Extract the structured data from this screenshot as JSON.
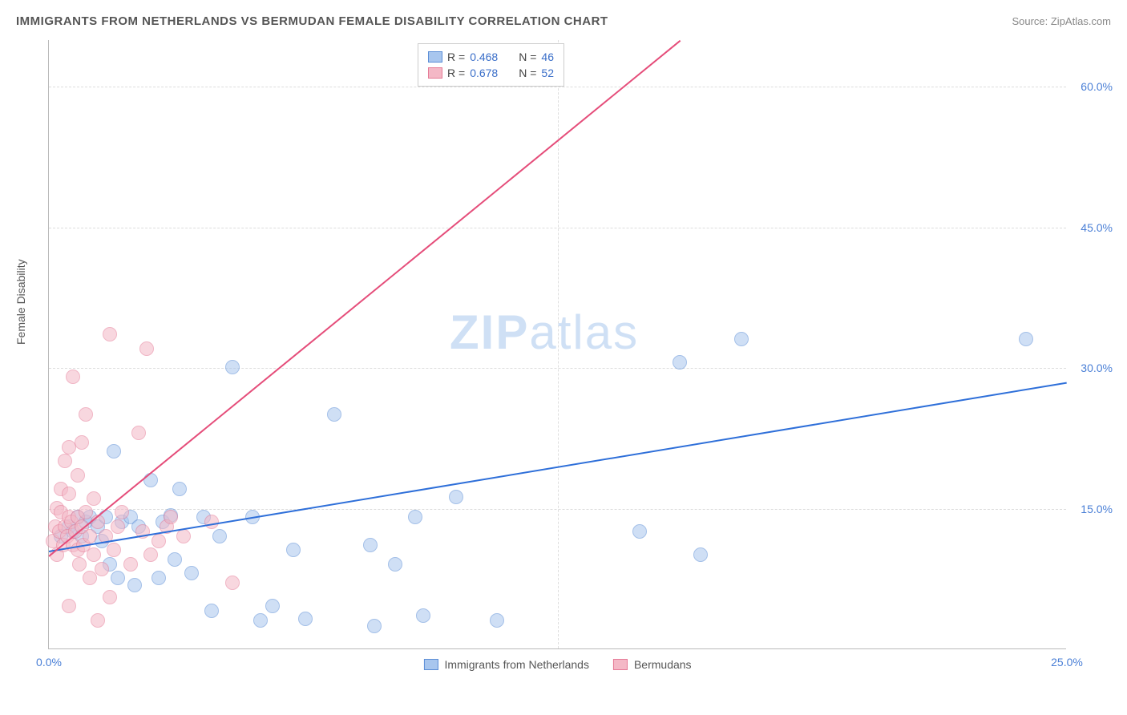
{
  "title": "IMMIGRANTS FROM NETHERLANDS VS BERMUDAN FEMALE DISABILITY CORRELATION CHART",
  "source": "Source: ZipAtlas.com",
  "ylabel": "Female Disability",
  "watermark_zip": "ZIP",
  "watermark_atlas": "atlas",
  "chart": {
    "type": "scatter",
    "xlim": [
      0,
      25
    ],
    "ylim": [
      0,
      65
    ],
    "xticks": [
      {
        "val": 0,
        "label": "0.0%"
      },
      {
        "val": 25,
        "label": "25.0%"
      }
    ],
    "yticks": [
      {
        "val": 15,
        "label": "15.0%"
      },
      {
        "val": 30,
        "label": "30.0%"
      },
      {
        "val": 45,
        "label": "45.0%"
      },
      {
        "val": 60,
        "label": "60.0%"
      }
    ],
    "vgrids": [
      12.5
    ],
    "background_color": "#ffffff",
    "grid_color": "#dddddd",
    "marker_radius": 9,
    "marker_opacity": 0.55,
    "series": [
      {
        "name": "Immigrants from Netherlands",
        "color_fill": "#a8c6ee",
        "color_stroke": "#5b8dd6",
        "line_color": "#2e6fd9",
        "R": "0.468",
        "N": "46",
        "trend": {
          "x1": 0,
          "y1": 10.5,
          "x2": 25,
          "y2": 28.5
        },
        "points": [
          [
            0.3,
            12.0
          ],
          [
            0.5,
            13.0
          ],
          [
            0.6,
            12.5
          ],
          [
            0.7,
            14.0
          ],
          [
            0.8,
            12.0
          ],
          [
            0.9,
            13.5
          ],
          [
            1.0,
            14.0
          ],
          [
            1.2,
            13.0
          ],
          [
            1.3,
            11.5
          ],
          [
            1.4,
            14.0
          ],
          [
            1.5,
            9.0
          ],
          [
            1.6,
            21.0
          ],
          [
            1.7,
            7.5
          ],
          [
            1.8,
            13.5
          ],
          [
            2.0,
            14.0
          ],
          [
            2.1,
            6.8
          ],
          [
            2.2,
            13.0
          ],
          [
            2.5,
            18.0
          ],
          [
            2.7,
            7.5
          ],
          [
            2.8,
            13.5
          ],
          [
            3.0,
            14.2
          ],
          [
            3.1,
            9.5
          ],
          [
            3.2,
            17.0
          ],
          [
            3.5,
            8.0
          ],
          [
            3.8,
            14.0
          ],
          [
            4.0,
            4.0
          ],
          [
            4.2,
            12.0
          ],
          [
            4.5,
            30.0
          ],
          [
            5.0,
            14.0
          ],
          [
            5.2,
            3.0
          ],
          [
            5.5,
            4.5
          ],
          [
            6.0,
            10.5
          ],
          [
            6.3,
            3.2
          ],
          [
            7.0,
            25.0
          ],
          [
            7.9,
            11.0
          ],
          [
            8.0,
            2.4
          ],
          [
            8.5,
            9.0
          ],
          [
            9.0,
            14.0
          ],
          [
            9.2,
            3.5
          ],
          [
            10.0,
            16.2
          ],
          [
            11.0,
            3.0
          ],
          [
            14.5,
            12.5
          ],
          [
            15.5,
            30.5
          ],
          [
            16.0,
            10.0
          ],
          [
            17.0,
            33.0
          ],
          [
            24.0,
            33.0
          ]
        ]
      },
      {
        "name": "Bermudans",
        "color_fill": "#f4b8c6",
        "color_stroke": "#e57a96",
        "line_color": "#e54d7a",
        "R": "0.678",
        "N": "52",
        "trend": {
          "x1": 0,
          "y1": 10.0,
          "x2": 15.5,
          "y2": 65.0
        },
        "points": [
          [
            0.1,
            11.5
          ],
          [
            0.15,
            13.0
          ],
          [
            0.2,
            10.0
          ],
          [
            0.2,
            15.0
          ],
          [
            0.25,
            12.5
          ],
          [
            0.3,
            14.5
          ],
          [
            0.3,
            17.0
          ],
          [
            0.35,
            11.0
          ],
          [
            0.4,
            13.0
          ],
          [
            0.4,
            20.0
          ],
          [
            0.45,
            12.0
          ],
          [
            0.5,
            14.0
          ],
          [
            0.5,
            16.5
          ],
          [
            0.5,
            21.5
          ],
          [
            0.55,
            13.5
          ],
          [
            0.6,
            11.0
          ],
          [
            0.6,
            29.0
          ],
          [
            0.65,
            12.5
          ],
          [
            0.7,
            10.5
          ],
          [
            0.7,
            14.0
          ],
          [
            0.7,
            18.5
          ],
          [
            0.75,
            9.0
          ],
          [
            0.8,
            13.0
          ],
          [
            0.8,
            22.0
          ],
          [
            0.85,
            11.0
          ],
          [
            0.9,
            14.5
          ],
          [
            0.9,
            25.0
          ],
          [
            1.0,
            7.5
          ],
          [
            1.0,
            12.0
          ],
          [
            1.1,
            10.0
          ],
          [
            1.1,
            16.0
          ],
          [
            1.2,
            13.5
          ],
          [
            1.3,
            8.5
          ],
          [
            1.4,
            12.0
          ],
          [
            1.5,
            33.5
          ],
          [
            1.5,
            5.5
          ],
          [
            1.6,
            10.5
          ],
          [
            1.7,
            13.0
          ],
          [
            1.8,
            14.5
          ],
          [
            2.0,
            9.0
          ],
          [
            2.2,
            23.0
          ],
          [
            2.3,
            12.5
          ],
          [
            2.4,
            32.0
          ],
          [
            2.5,
            10.0
          ],
          [
            2.7,
            11.5
          ],
          [
            2.9,
            13.0
          ],
          [
            3.0,
            14.0
          ],
          [
            3.3,
            12.0
          ],
          [
            4.0,
            13.5
          ],
          [
            4.5,
            7.0
          ],
          [
            0.5,
            4.5
          ],
          [
            1.2,
            3.0
          ]
        ]
      }
    ]
  },
  "legend_bottom": [
    {
      "label": "Immigrants from Netherlands",
      "fill": "#a8c6ee",
      "stroke": "#5b8dd6"
    },
    {
      "label": "Bermudans",
      "fill": "#f4b8c6",
      "stroke": "#e57a96"
    }
  ]
}
